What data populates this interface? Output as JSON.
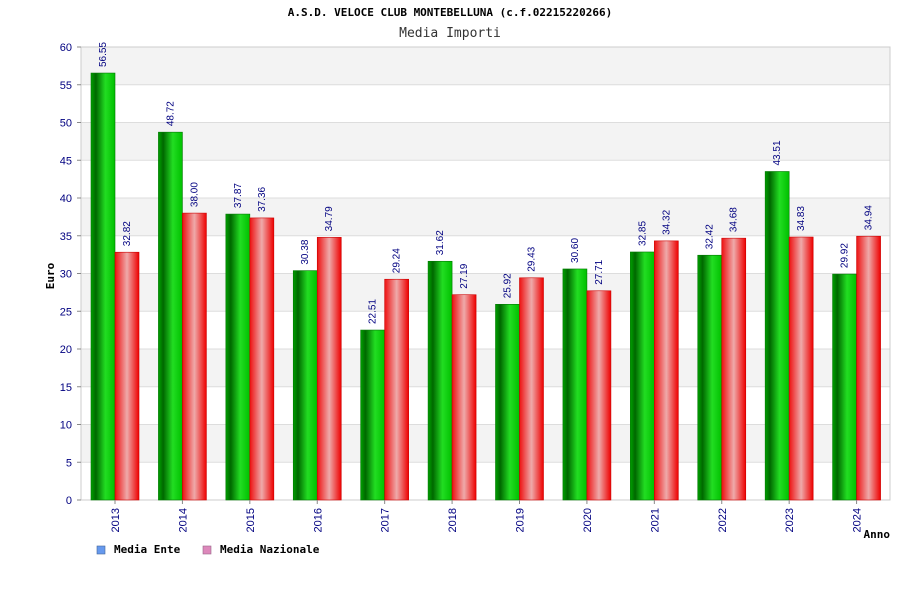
{
  "chart_data": {
    "type": "bar",
    "title": "A.S.D. VELOCE CLUB MONTEBELLUNA (c.f.02215220266)",
    "subtitle": "Media Importi",
    "xlabel": "Anno",
    "ylabel": "Euro",
    "ylim": [
      0,
      60
    ],
    "yticks": [
      0,
      5,
      10,
      15,
      20,
      25,
      30,
      35,
      40,
      45,
      50,
      55,
      60
    ],
    "grid": true,
    "legend_position": "bottom-left",
    "categories": [
      "2013",
      "2014",
      "2015",
      "2016",
      "2017",
      "2018",
      "2019",
      "2020",
      "2021",
      "2022",
      "2023",
      "2024"
    ],
    "series": [
      {
        "name": "Media Ente",
        "color": "#00b000",
        "legend_color": "#6699ee",
        "values": [
          56.55,
          48.72,
          37.87,
          30.38,
          22.51,
          31.62,
          25.92,
          30.6,
          32.85,
          32.42,
          43.51,
          29.92
        ],
        "labels": [
          "56.55",
          "48.72",
          "37.87",
          "30.38",
          "22.51",
          "31.62",
          "25.92",
          "30.60",
          "32.85",
          "32.42",
          "43.51",
          "29.92"
        ]
      },
      {
        "name": "Media Nazionale",
        "color": "#ee1111",
        "legend_color": "#dd88bb",
        "values": [
          32.82,
          38.0,
          37.36,
          34.79,
          29.24,
          27.19,
          29.43,
          27.71,
          34.32,
          34.68,
          34.83,
          34.94
        ],
        "labels": [
          "32.82",
          "38.00",
          "37.36",
          "34.79",
          "29.24",
          "27.19",
          "29.43",
          "27.71",
          "34.32",
          "34.68",
          "34.83",
          "34.94"
        ]
      }
    ]
  }
}
